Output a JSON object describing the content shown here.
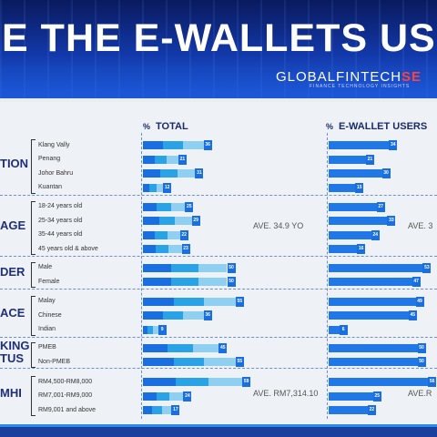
{
  "header": {
    "headline": "RE THE E-WALLETS US",
    "brand_prefix": "GLOBALFINTECH",
    "brand_accent": "SE",
    "tagline": "FINANCE TECHNOLOGY INSIGHTS"
  },
  "colors": {
    "bar_dark": "#1a6fe0",
    "bar_mid": "#2aa3e6",
    "bar_light": "#8fd0f2",
    "bar_ewallet": "#1f78e6",
    "value_box": "#1a6fe0",
    "header_dark": "#0a1a5e",
    "footer": "#1b3f9c"
  },
  "columns": {
    "total_pct": "%",
    "total_label": "TOTAL",
    "ewallet_pct": "%",
    "ewallet_label": "E-WALLET USERS"
  },
  "chart_data": {
    "type": "bar",
    "orientation": "horizontal",
    "sections": [
      {
        "label": "TION",
        "ave_total": "",
        "ave_ewallet": "",
        "rows": [
          {
            "label": "Klang Vally",
            "total": 36,
            "ewallet": 34
          },
          {
            "label": "Penang",
            "total": 21,
            "ewallet": 21
          },
          {
            "label": "Johor Bahru",
            "total": 31,
            "ewallet": 30
          },
          {
            "label": "Kuantan",
            "total": 12,
            "ewallet": 15
          }
        ]
      },
      {
        "label": "AGE",
        "ave_total": "AVE. 34.9 YO",
        "ave_ewallet": "AVE. 3",
        "rows": [
          {
            "label": "18-24 years old",
            "total": 25,
            "ewallet": 27
          },
          {
            "label": "25-34 years old",
            "total": 29,
            "ewallet": 33
          },
          {
            "label": "35-44 years old",
            "total": 22,
            "ewallet": 24
          },
          {
            "label": "45 years old & above",
            "total": 23,
            "ewallet": 16
          }
        ]
      },
      {
        "label": "DER",
        "ave_total": "",
        "ave_ewallet": "",
        "rows": [
          {
            "label": "Male",
            "total": 50,
            "ewallet": 53
          },
          {
            "label": "Female",
            "total": 50,
            "ewallet": 47
          }
        ]
      },
      {
        "label": "ACE",
        "ave_total": "",
        "ave_ewallet": "",
        "rows": [
          {
            "label": "Malay",
            "total": 55,
            "ewallet": 49
          },
          {
            "label": "Chinese",
            "total": 36,
            "ewallet": 45
          },
          {
            "label": "Indian",
            "total": 9,
            "ewallet": 6
          }
        ]
      },
      {
        "label": "KING|TUS",
        "ave_total": "",
        "ave_ewallet": "",
        "rows": [
          {
            "label": "PMEB",
            "total": 45,
            "ewallet": 50
          },
          {
            "label": "Non-PMEB",
            "total": 55,
            "ewallet": 50
          }
        ]
      },
      {
        "label": "MHI",
        "ave_total": "AVE. RM7,314.10",
        "ave_ewallet": "AVE.R",
        "rows": [
          {
            "label": "RM4,500-RM8,000",
            "total": 59,
            "ewallet": 56
          },
          {
            "label": "RM7,001-RM9,000",
            "total": 24,
            "ewallet": 25
          },
          {
            "label": "RM9,001 and above",
            "total": 17,
            "ewallet": 22
          }
        ]
      }
    ]
  }
}
